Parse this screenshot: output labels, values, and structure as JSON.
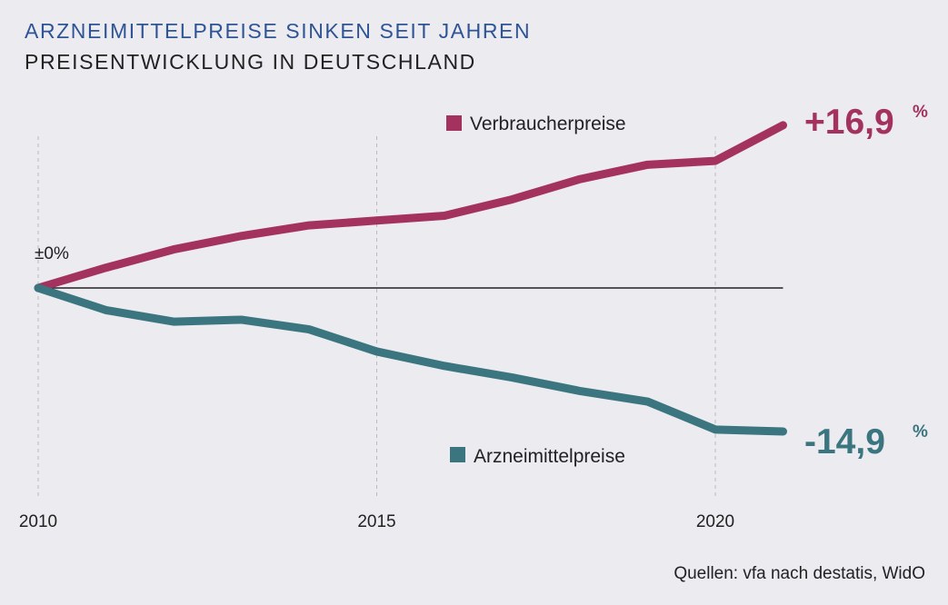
{
  "header": {
    "title": "ARZNEIMITTELPREISE SINKEN SEIT JAHREN",
    "subtitle": "PREISENTWICKLUNG IN DEUTSCHLAND"
  },
  "source": "Quellen: vfa nach destatis, WidO",
  "chart_data": {
    "type": "line",
    "x": [
      2010,
      2011,
      2012,
      2013,
      2014,
      2015,
      2016,
      2017,
      2018,
      2019,
      2020,
      2021
    ],
    "x_ticks": [
      "2010",
      "2015",
      "2020"
    ],
    "baseline_label": "±0%",
    "ylim": [
      -20,
      20
    ],
    "grid": "vertical dashed lines at 2010, 2015, 2020",
    "series": [
      {
        "name": "Verbraucherpreise",
        "color": "#a3325f",
        "values": [
          0,
          2.1,
          4.0,
          5.4,
          6.5,
          7.0,
          7.5,
          9.2,
          11.3,
          12.8,
          13.2,
          16.9
        ],
        "end_label": "+16,9",
        "end_unit": "%",
        "legend_position": "upper-center"
      },
      {
        "name": "Arzneimittelpreise",
        "color": "#3a7580",
        "values": [
          0,
          -2.3,
          -3.5,
          -3.3,
          -4.3,
          -6.6,
          -8.1,
          -9.3,
          -10.7,
          -11.8,
          -14.7,
          -14.9
        ],
        "end_label": "-14,9",
        "end_unit": "%",
        "legend_position": "lower-center"
      }
    ]
  }
}
